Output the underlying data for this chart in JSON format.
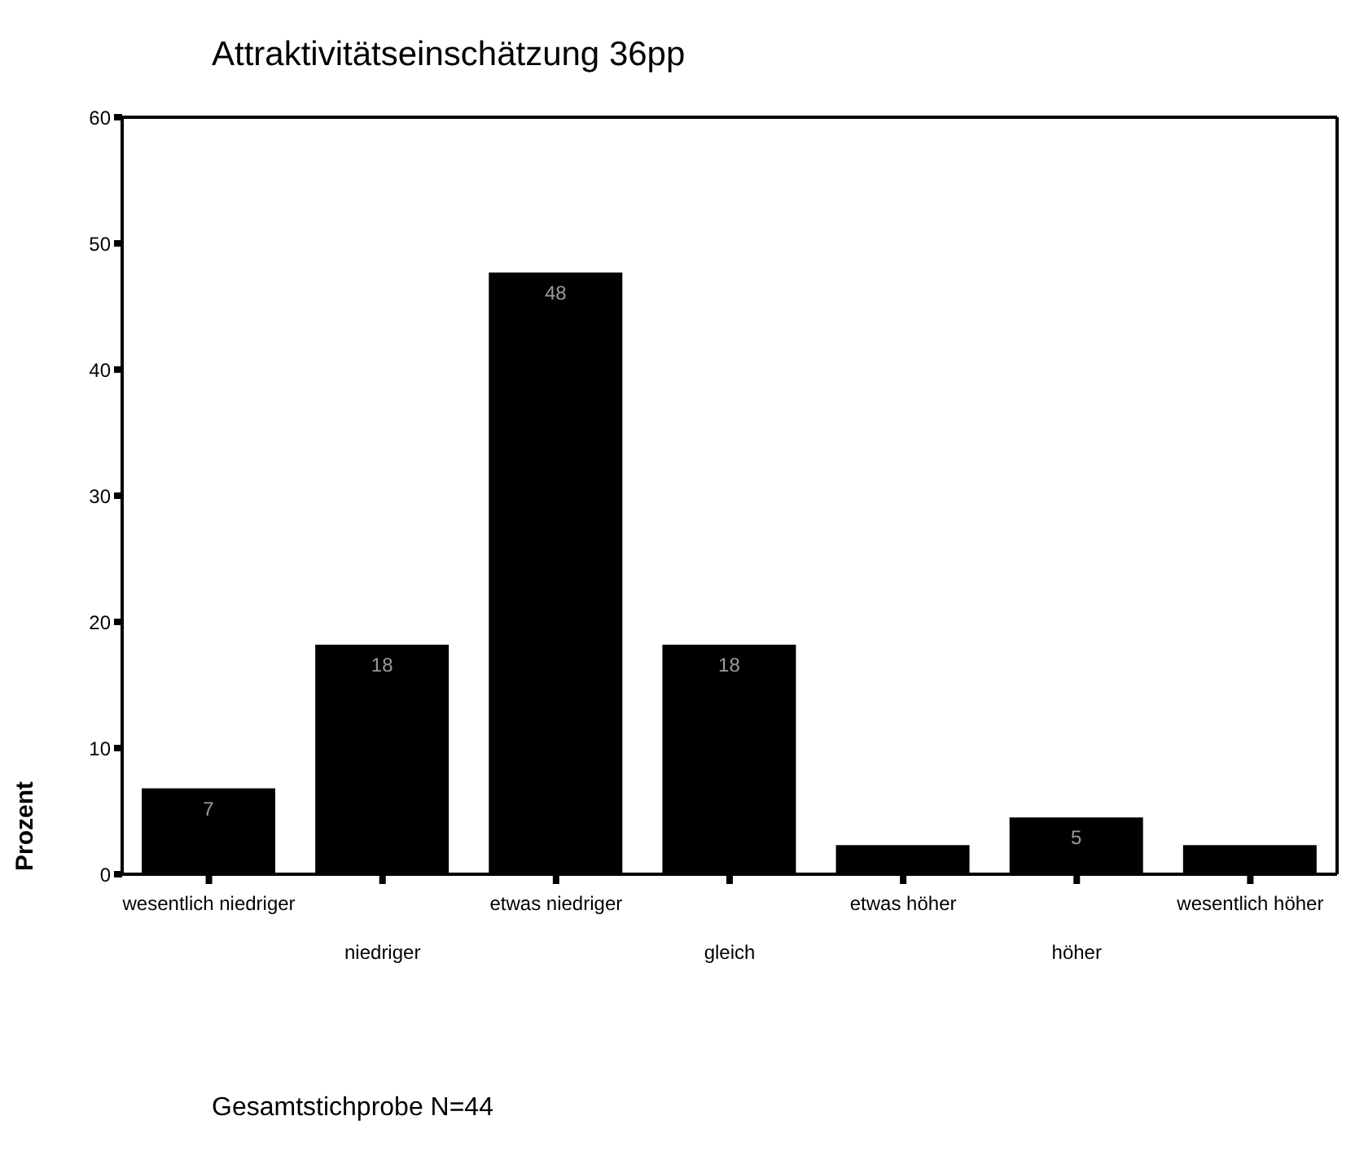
{
  "chart_data": {
    "type": "bar",
    "title": "Attraktivitätseinschätzung 36pp",
    "ylabel": "Prozent",
    "categories": [
      "wesentlich niedriger",
      "niedriger",
      "etwas niedriger",
      "gleich",
      "etwas höher",
      "höher",
      "wesentlich höher"
    ],
    "values": [
      6.8,
      18.2,
      47.7,
      18.2,
      2.3,
      4.5,
      2.3
    ],
    "value_labels": [
      "7",
      "18",
      "48",
      "18",
      null,
      "5",
      null
    ],
    "color": "#000000",
    "ylim": [
      0,
      60
    ],
    "yticks": [
      0,
      10,
      20,
      30,
      40,
      50,
      60
    ],
    "annotations": [
      "Gesamtstichprobe N=44"
    ]
  }
}
